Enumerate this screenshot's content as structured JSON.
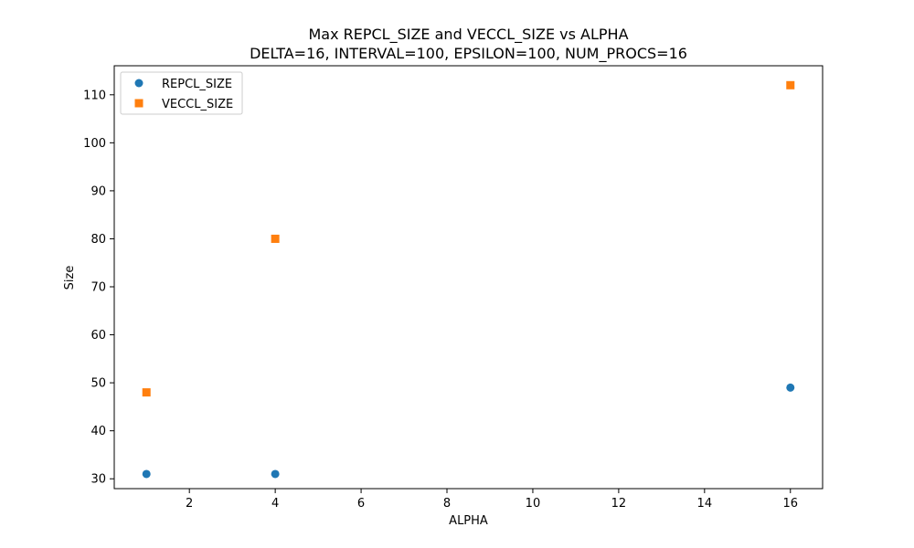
{
  "chart_data": {
    "type": "scatter",
    "title": "Max REPCL_SIZE and VECCL_SIZE vs ALPHA",
    "subtitle": "DELTA=16, INTERVAL=100, EPSILON=100, NUM_PROCS=16",
    "xlabel": "ALPHA",
    "ylabel": "Size",
    "xlim": [
      0.25,
      16.75
    ],
    "ylim": [
      27.95,
      116.05
    ],
    "xticks": [
      2,
      4,
      6,
      8,
      10,
      12,
      14,
      16
    ],
    "yticks": [
      30,
      40,
      50,
      60,
      70,
      80,
      90,
      100,
      110
    ],
    "grid": false,
    "legend_position": "top-left",
    "series": [
      {
        "name": "REPCL_SIZE",
        "marker": "circle",
        "color": "#1f77b4",
        "points": [
          {
            "x": 1,
            "y": 31
          },
          {
            "x": 4,
            "y": 31
          },
          {
            "x": 16,
            "y": 49
          }
        ]
      },
      {
        "name": "VECCL_SIZE",
        "marker": "square",
        "color": "#ff7f0e",
        "points": [
          {
            "x": 1,
            "y": 48
          },
          {
            "x": 4,
            "y": 80
          },
          {
            "x": 16,
            "y": 112
          }
        ]
      }
    ]
  }
}
